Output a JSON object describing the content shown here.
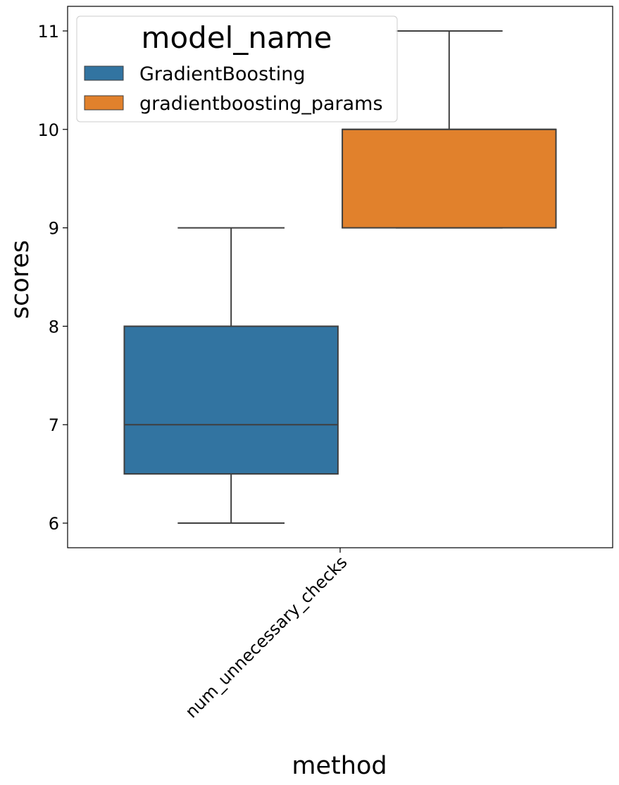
{
  "chart_data": {
    "type": "box",
    "xlabel": "method",
    "ylabel": "scores",
    "categories": [
      "num_unnecessary_checks"
    ],
    "ylim": [
      5.75,
      11.25
    ],
    "yticks": [
      6,
      7,
      8,
      9,
      10,
      11
    ],
    "grid": false,
    "legend": {
      "title": "model_name",
      "position": "top-left"
    },
    "series": [
      {
        "name": "GradientBoosting",
        "color": "#3274a1",
        "boxes": [
          {
            "category": "num_unnecessary_checks",
            "whisker_low": 6,
            "q1": 6.5,
            "median": 7,
            "q3": 8,
            "whisker_high": 9
          }
        ]
      },
      {
        "name": "gradientboosting_params",
        "color": "#e1812c",
        "boxes": [
          {
            "category": "num_unnecessary_checks",
            "whisker_low": 9,
            "q1": 9,
            "median": 10,
            "q3": 10,
            "whisker_high": 11
          }
        ]
      }
    ]
  }
}
